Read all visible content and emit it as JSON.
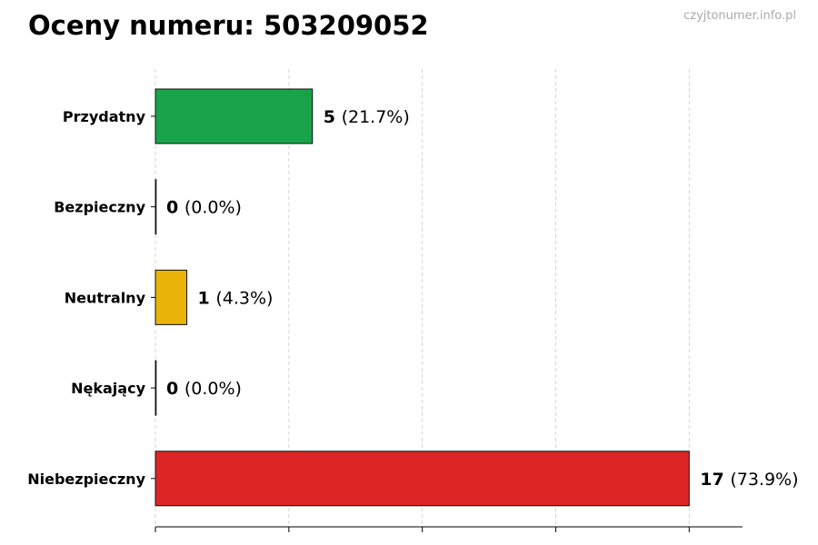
{
  "title": "Oceny numeru: 503209052",
  "watermark": "czyjtonumer.info.pl",
  "chart_data": {
    "type": "bar",
    "orientation": "horizontal",
    "title": "Oceny numeru: 503209052",
    "categories": [
      "Przydatny",
      "Bezpieczny",
      "Neutralny",
      "Nękający",
      "Niebezpieczny"
    ],
    "values": [
      5,
      0,
      1,
      0,
      17
    ],
    "percent_labels": [
      "(21.7%)",
      "(0.0%)",
      "(4.3%)",
      "(0.0%)",
      "(73.9%)"
    ],
    "colors": [
      "#18a34a",
      "#18a34a",
      "#eab308",
      "#dc2626",
      "#dc2626"
    ],
    "xlim": [
      0,
      18.7
    ],
    "grid": true,
    "xlabel": "",
    "ylabel": ""
  }
}
